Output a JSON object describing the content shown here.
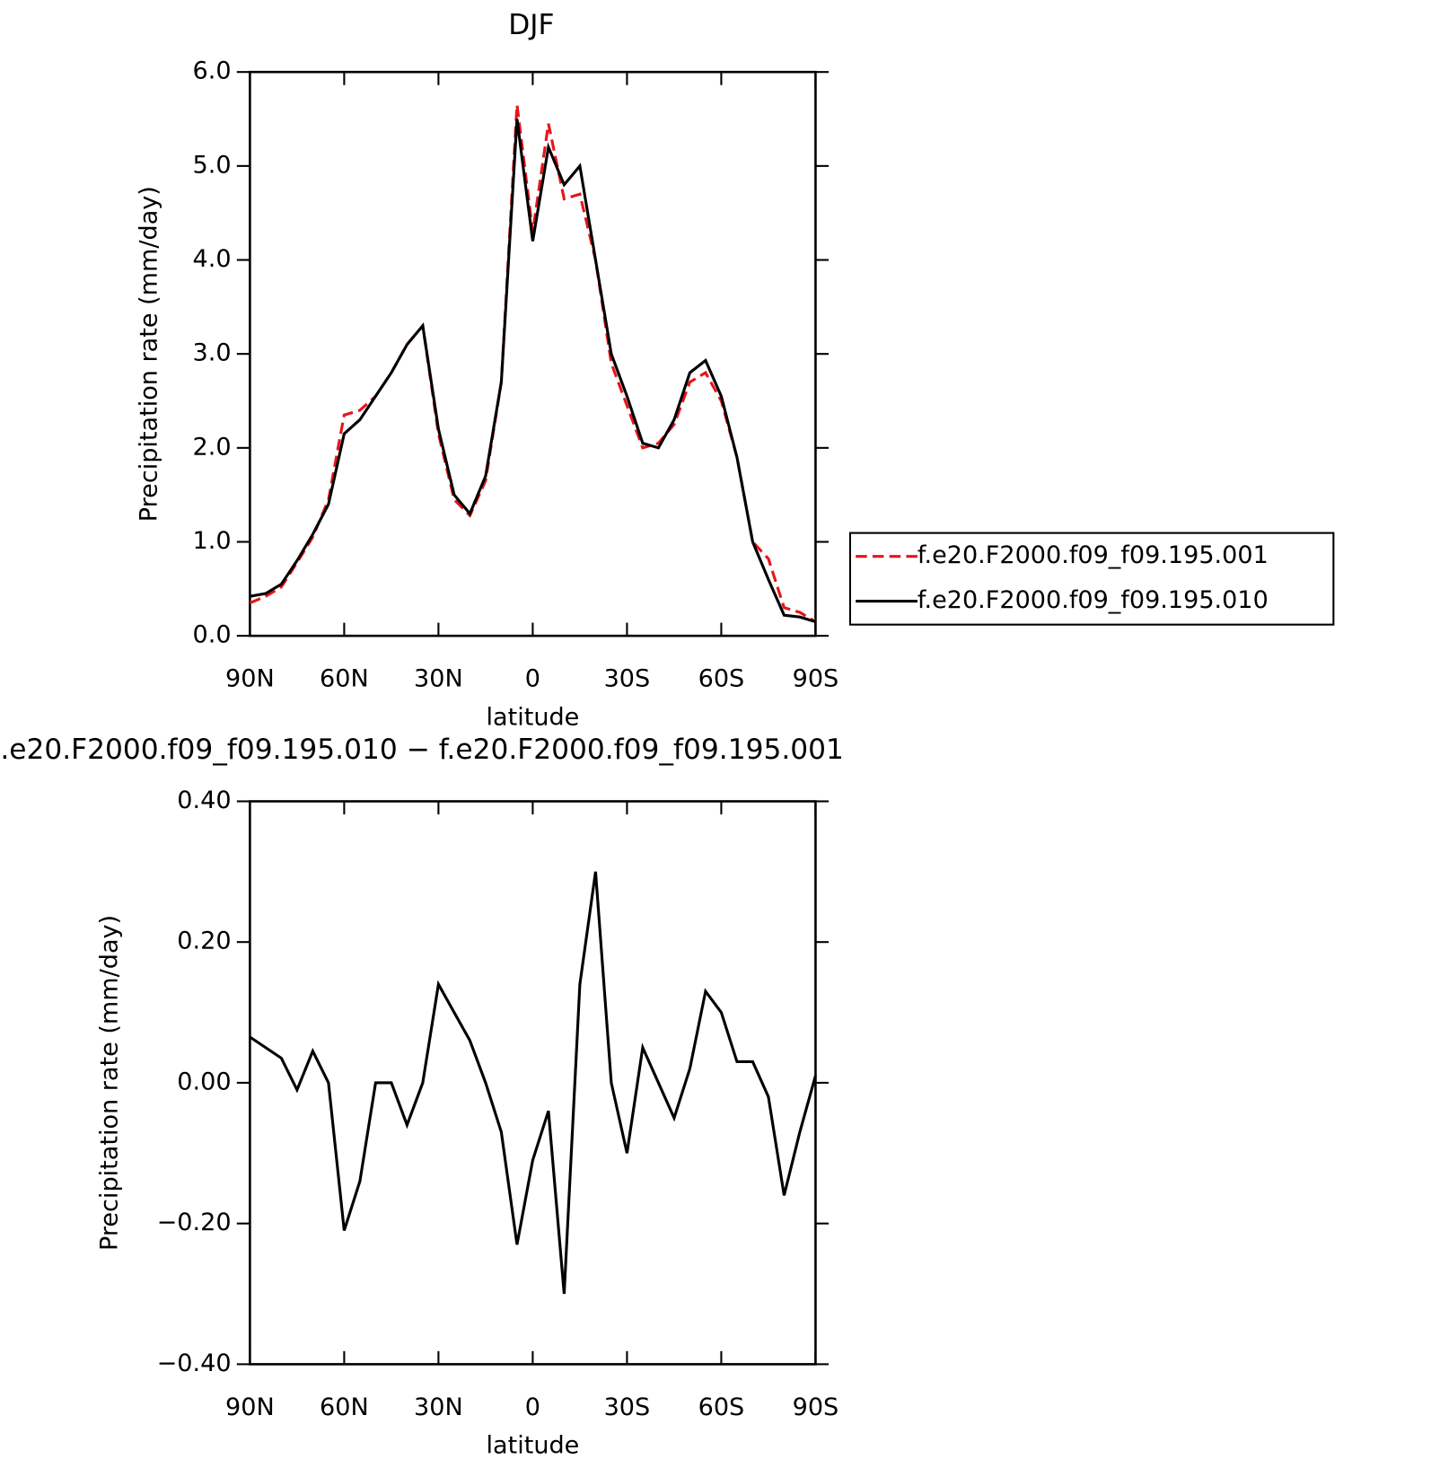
{
  "chart_data": [
    {
      "type": "line",
      "title": "DJF",
      "xlabel": "latitude",
      "ylabel": "Precipitation rate (mm/day)",
      "x": [
        90,
        85,
        80,
        75,
        70,
        65,
        60,
        55,
        50,
        45,
        40,
        35,
        30,
        25,
        20,
        15,
        10,
        5,
        0,
        -5,
        -10,
        -15,
        -20,
        -25,
        -30,
        -35,
        -40,
        -45,
        -50,
        -55,
        -60,
        -65,
        -70,
        -75,
        -80,
        -85,
        -90
      ],
      "xlim": [
        90,
        -90
      ],
      "xticks": [
        {
          "value": 90,
          "label": "90N"
        },
        {
          "value": 60,
          "label": "60N"
        },
        {
          "value": 30,
          "label": "30N"
        },
        0,
        {
          "value": -30,
          "label": "30S"
        },
        {
          "value": -60,
          "label": "60S"
        },
        {
          "value": -90,
          "label": "90S"
        }
      ],
      "ylim": [
        0,
        6
      ],
      "yticks": [
        {
          "value": 0,
          "label": "0.0"
        },
        {
          "value": 1,
          "label": "1.0"
        },
        {
          "value": 2,
          "label": "2.0"
        },
        {
          "value": 3,
          "label": "3.0"
        },
        {
          "value": 4,
          "label": "4.0"
        },
        {
          "value": 5,
          "label": "5.0"
        },
        {
          "value": 6,
          "label": "6.0"
        }
      ],
      "legend": "right",
      "series": [
        {
          "name": "f.e20.F2000.f09_f09.195.001",
          "color": "#e8141c",
          "style": "dashed",
          "values": [
            0.35,
            0.42,
            0.52,
            0.78,
            1.05,
            1.45,
            2.35,
            2.4,
            2.55,
            2.8,
            3.1,
            3.3,
            2.15,
            1.45,
            1.28,
            1.65,
            2.7,
            5.65,
            4.3,
            5.45,
            4.65,
            4.7,
            4.0,
            2.9,
            2.45,
            2.0,
            2.05,
            2.25,
            2.7,
            2.8,
            2.5,
            1.9,
            1.0,
            0.82,
            0.3,
            0.25,
            0.15
          ]
        },
        {
          "name": "f.e20.F2000.f09_f09.195.010",
          "color": "#000000",
          "style": "solid",
          "values": [
            0.42,
            0.45,
            0.55,
            0.8,
            1.08,
            1.4,
            2.15,
            2.3,
            2.55,
            2.8,
            3.1,
            3.3,
            2.2,
            1.5,
            1.3,
            1.7,
            2.7,
            5.5,
            4.2,
            5.2,
            4.8,
            5.0,
            4.0,
            3.0,
            2.55,
            2.05,
            2.0,
            2.3,
            2.8,
            2.93,
            2.55,
            1.9,
            1.0,
            0.6,
            0.22,
            0.2,
            0.15
          ]
        }
      ]
    },
    {
      "type": "line",
      "title": ".e20.F2000.f09_f09.195.010 − f.e20.F2000.f09_f09.195.001",
      "xlabel": "latitude",
      "ylabel": "Precipitation rate (mm/day)",
      "x": [
        90,
        85,
        80,
        75,
        70,
        65,
        60,
        55,
        50,
        45,
        40,
        35,
        30,
        25,
        20,
        15,
        10,
        5,
        0,
        -5,
        -10,
        -15,
        -20,
        -25,
        -30,
        -35,
        -40,
        -45,
        -50,
        -55,
        -60,
        -65,
        -70,
        -75,
        -80,
        -85,
        -90
      ],
      "xlim": [
        90,
        -90
      ],
      "xticks": [
        {
          "value": 90,
          "label": "90N"
        },
        {
          "value": 60,
          "label": "60N"
        },
        {
          "value": 30,
          "label": "30N"
        },
        0,
        {
          "value": -30,
          "label": "30S"
        },
        {
          "value": -60,
          "label": "60S"
        },
        {
          "value": -90,
          "label": "90S"
        }
      ],
      "ylim": [
        -0.4,
        0.4
      ],
      "yticks": [
        {
          "value": -0.4,
          "label": "−0.40"
        },
        {
          "value": -0.2,
          "label": "−0.20"
        },
        {
          "value": 0,
          "label": "0.00"
        },
        {
          "value": 0.2,
          "label": "0.20"
        },
        {
          "value": 0.4,
          "label": "0.40"
        }
      ],
      "color": "#000000",
      "values": [
        0.065,
        0.05,
        0.035,
        -0.01,
        0.045,
        0.0,
        -0.21,
        -0.14,
        0.0,
        0.0,
        -0.06,
        0.0,
        0.14,
        0.1,
        0.06,
        0.0,
        -0.07,
        -0.23,
        -0.11,
        -0.04,
        -0.3,
        0.14,
        0.3,
        0.0,
        -0.1,
        0.05,
        0.0,
        -0.05,
        0.02,
        0.13,
        0.1,
        0.03,
        0.03,
        -0.02,
        -0.16,
        -0.07,
        0.01
      ]
    }
  ]
}
